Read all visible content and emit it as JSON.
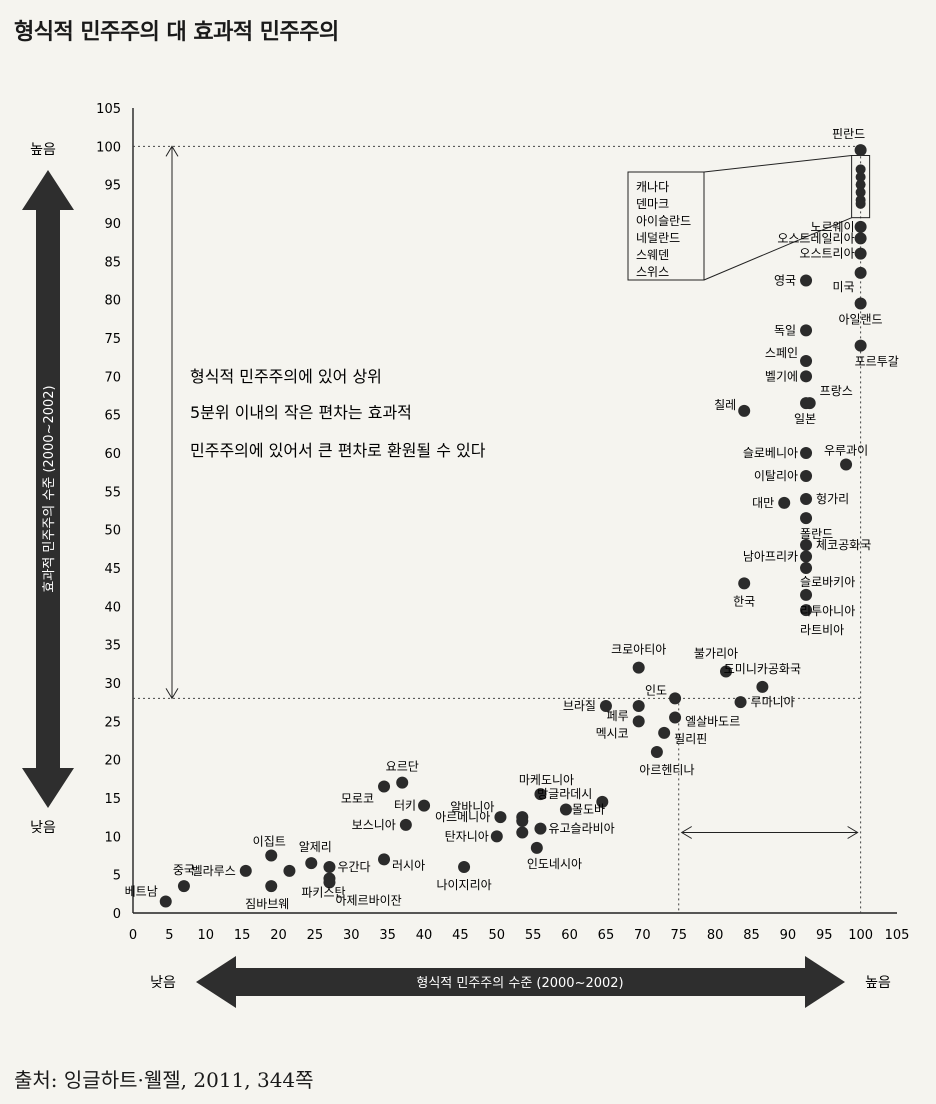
{
  "page": {
    "title": "형식적 민주주의 대 효과적 민주주의",
    "source": "출처: 잉글하트·웰젤, 2011, 344쪽"
  },
  "colors": {
    "dot": "#2b2b2b",
    "arrow": "#2e2e2e",
    "arrow_text": "#ffffff"
  },
  "chart_data": {
    "type": "scatter",
    "title": "형식적 민주주의 대 효과적 민주주의",
    "xlabel": "형식적 민주주의 수준 (2000~2002)",
    "ylabel": "효과적 민주주의 수준 (2000~2002)",
    "x_low_label": "낮음",
    "x_high_label": "높음",
    "y_low_label": "낮음",
    "y_high_label": "높음",
    "xlim": [
      0,
      105
    ],
    "ylim": [
      0,
      105
    ],
    "x_ticks": [
      "0",
      "5",
      "10",
      "15",
      "20",
      "25",
      "30",
      "35",
      "40",
      "45",
      "50",
      "55",
      "60",
      "65",
      "70",
      "75",
      "80",
      "85",
      "90",
      "95",
      "100",
      "105"
    ],
    "y_ticks": [
      "0",
      "5",
      "10",
      "15",
      "20",
      "25",
      "30",
      "35",
      "40",
      "45",
      "50",
      "55",
      "60",
      "65",
      "70",
      "75",
      "80",
      "85",
      "90",
      "95",
      "100",
      "105"
    ],
    "grid": false,
    "legend": "none",
    "annotation": {
      "lines": [
        "형식적 민주주의에 있어 상위",
        "5분위 이내의 작은 편차는 효과적",
        "민주주의에 있어서 큰 편차로 환원될 수 있다"
      ],
      "x_span": [
        75,
        100
      ],
      "y_span": [
        28,
        100
      ]
    },
    "cluster": {
      "labels": [
        "캐나다",
        "덴마크",
        "아이슬란드",
        "네덜란드",
        "스웨덴",
        "스위스"
      ],
      "x": 100,
      "y_range": [
        92,
        97.5
      ]
    },
    "points": [
      {
        "label": "핀란드",
        "x": 100,
        "y": 99.5
      },
      {
        "label": "캐나다",
        "x": 100,
        "y": 97
      },
      {
        "label": "덴마크",
        "x": 100,
        "y": 96
      },
      {
        "label": "아이슬란드",
        "x": 100,
        "y": 95
      },
      {
        "label": "네덜란드",
        "x": 100,
        "y": 94
      },
      {
        "label": "스웨덴",
        "x": 100,
        "y": 93
      },
      {
        "label": "스위스",
        "x": 100,
        "y": 92.5
      },
      {
        "label": "노르웨이",
        "x": 100,
        "y": 89.5
      },
      {
        "label": "오스트레일리아",
        "x": 100,
        "y": 88
      },
      {
        "label": "오스트리아",
        "x": 100,
        "y": 86
      },
      {
        "label": "영국",
        "x": 92.5,
        "y": 82.5
      },
      {
        "label": "미국",
        "x": 100,
        "y": 83.5
      },
      {
        "label": "아일랜드",
        "x": 100,
        "y": 79.5
      },
      {
        "label": "독일",
        "x": 92.5,
        "y": 76
      },
      {
        "label": "포르투갈",
        "x": 100,
        "y": 74
      },
      {
        "label": "스페인",
        "x": 92.5,
        "y": 72
      },
      {
        "label": "벨기에",
        "x": 92.5,
        "y": 70
      },
      {
        "label": "프랑스",
        "x": 93,
        "y": 66.5
      },
      {
        "label": "칠레",
        "x": 84,
        "y": 65.5
      },
      {
        "label": "일본",
        "x": 92.5,
        "y": 66.5
      },
      {
        "label": "슬로베니아",
        "x": 92.5,
        "y": 60
      },
      {
        "label": "우루과이",
        "x": 98,
        "y": 58.5
      },
      {
        "label": "이탈리아",
        "x": 92.5,
        "y": 57
      },
      {
        "label": "대만",
        "x": 89.5,
        "y": 53.5
      },
      {
        "label": "헝가리",
        "x": 92.5,
        "y": 54
      },
      {
        "label": "폴란드",
        "x": 92.5,
        "y": 51.5
      },
      {
        "label": "체코공화국",
        "x": 92.5,
        "y": 48
      },
      {
        "label": "남아프리카",
        "x": 92.5,
        "y": 46.5
      },
      {
        "label": "슬로바키아",
        "x": 92.5,
        "y": 45
      },
      {
        "label": "한국",
        "x": 84,
        "y": 43
      },
      {
        "label": "리투아니아",
        "x": 92.5,
        "y": 41.5
      },
      {
        "label": "라트비아",
        "x": 92.5,
        "y": 39.5
      },
      {
        "label": "크로아티아",
        "x": 69.5,
        "y": 32
      },
      {
        "label": "불가리아",
        "x": 81.5,
        "y": 31.5
      },
      {
        "label": "도미니카공화국",
        "x": 86.5,
        "y": 29.5
      },
      {
        "label": "인도",
        "x": 74.5,
        "y": 28
      },
      {
        "label": "루마니아",
        "x": 83.5,
        "y": 27.5
      },
      {
        "label": "브라질",
        "x": 65,
        "y": 27
      },
      {
        "label": "페루",
        "x": 69.5,
        "y": 27
      },
      {
        "label": "멕시코",
        "x": 69.5,
        "y": 25
      },
      {
        "label": "엘살바도르",
        "x": 74.5,
        "y": 25.5
      },
      {
        "label": "필리핀",
        "x": 73,
        "y": 23.5
      },
      {
        "label": "아르헨티나",
        "x": 72,
        "y": 21
      },
      {
        "label": "요르단",
        "x": 37,
        "y": 17
      },
      {
        "label": "모로코",
        "x": 34.5,
        "y": 16.5
      },
      {
        "label": "마케도니아",
        "x": 56,
        "y": 15.5
      },
      {
        "label": "터키",
        "x": 40,
        "y": 14
      },
      {
        "label": "방글라데시",
        "x": 64.5,
        "y": 14.5
      },
      {
        "label": "몰도바",
        "x": 59.5,
        "y": 13.5
      },
      {
        "label": "알바니아",
        "x": 50.5,
        "y": 12.5
      },
      {
        "label": "아르메니아",
        "x": 53.5,
        "y": 12.5
      },
      {
        "label": "보스니아",
        "x": 37.5,
        "y": 11.5
      },
      {
        "label": "유고슬라비아",
        "x": 56,
        "y": 11
      },
      {
        "label": "탄자니아",
        "x": 50,
        "y": 10
      },
      {
        "label": "",
        "x": 53.5,
        "y": 10.5
      },
      {
        "label": "",
        "x": 53.5,
        "y": 12
      },
      {
        "label": "인도네시아",
        "x": 55.5,
        "y": 8.5
      },
      {
        "label": "이집트",
        "x": 19,
        "y": 7.5
      },
      {
        "label": "알제리",
        "x": 24.5,
        "y": 6.5
      },
      {
        "label": "러시아",
        "x": 34.5,
        "y": 7
      },
      {
        "label": "나이지리아",
        "x": 45.5,
        "y": 6
      },
      {
        "label": "벨라루스",
        "x": 15.5,
        "y": 5.5
      },
      {
        "label": "우간다",
        "x": 27,
        "y": 6
      },
      {
        "label": "",
        "x": 21.5,
        "y": 5.5
      },
      {
        "label": "중국",
        "x": 7,
        "y": 3.5
      },
      {
        "label": "짐바브웨",
        "x": 19,
        "y": 3.5
      },
      {
        "label": "파키스탄",
        "x": 27,
        "y": 4.5
      },
      {
        "label": "아제르바이잔",
        "x": 27,
        "y": 4
      },
      {
        "label": "베트남",
        "x": 4.5,
        "y": 1.5
      }
    ]
  }
}
